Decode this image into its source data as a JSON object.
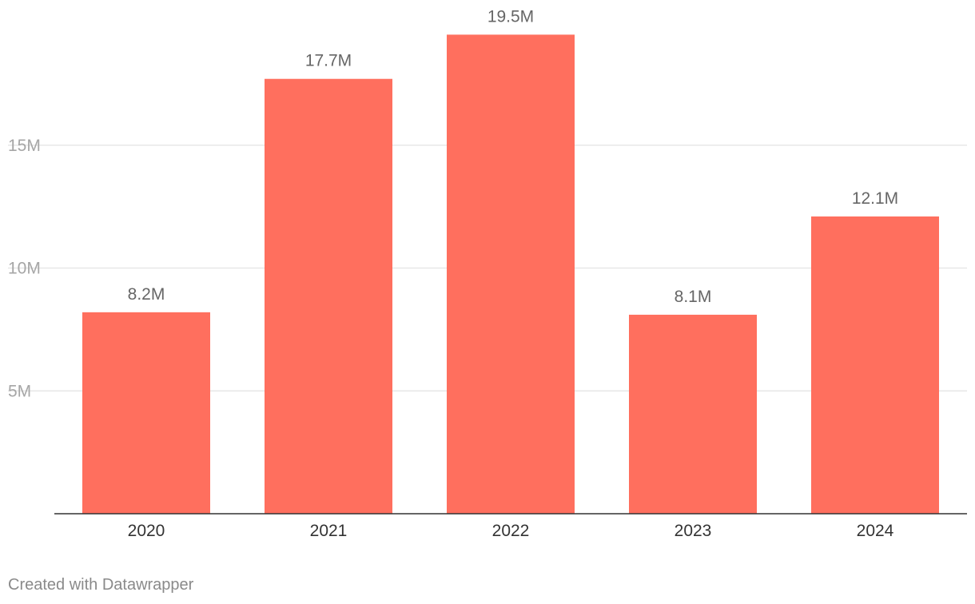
{
  "chart_data": {
    "type": "bar",
    "categories": [
      "2020",
      "2021",
      "2022",
      "2023",
      "2024"
    ],
    "values": [
      8.2,
      17.7,
      19.5,
      8.1,
      12.1
    ],
    "value_labels": [
      "8.2M",
      "17.7M",
      "19.5M",
      "8.1M",
      "12.1M"
    ],
    "unit_suffix": "M",
    "title": "",
    "xlabel": "",
    "ylabel": "",
    "ylim": [
      0,
      19.5
    ],
    "yticks": [
      5,
      10,
      15
    ],
    "ytick_labels": [
      "5M",
      "10M",
      "15M"
    ],
    "grid": true,
    "legend": "none",
    "colors": {
      "bar": "#ff6f5e",
      "gridline": "#e3e3e3",
      "baseline": "#333333"
    }
  },
  "footer": {
    "credit": "Created with Datawrapper"
  }
}
